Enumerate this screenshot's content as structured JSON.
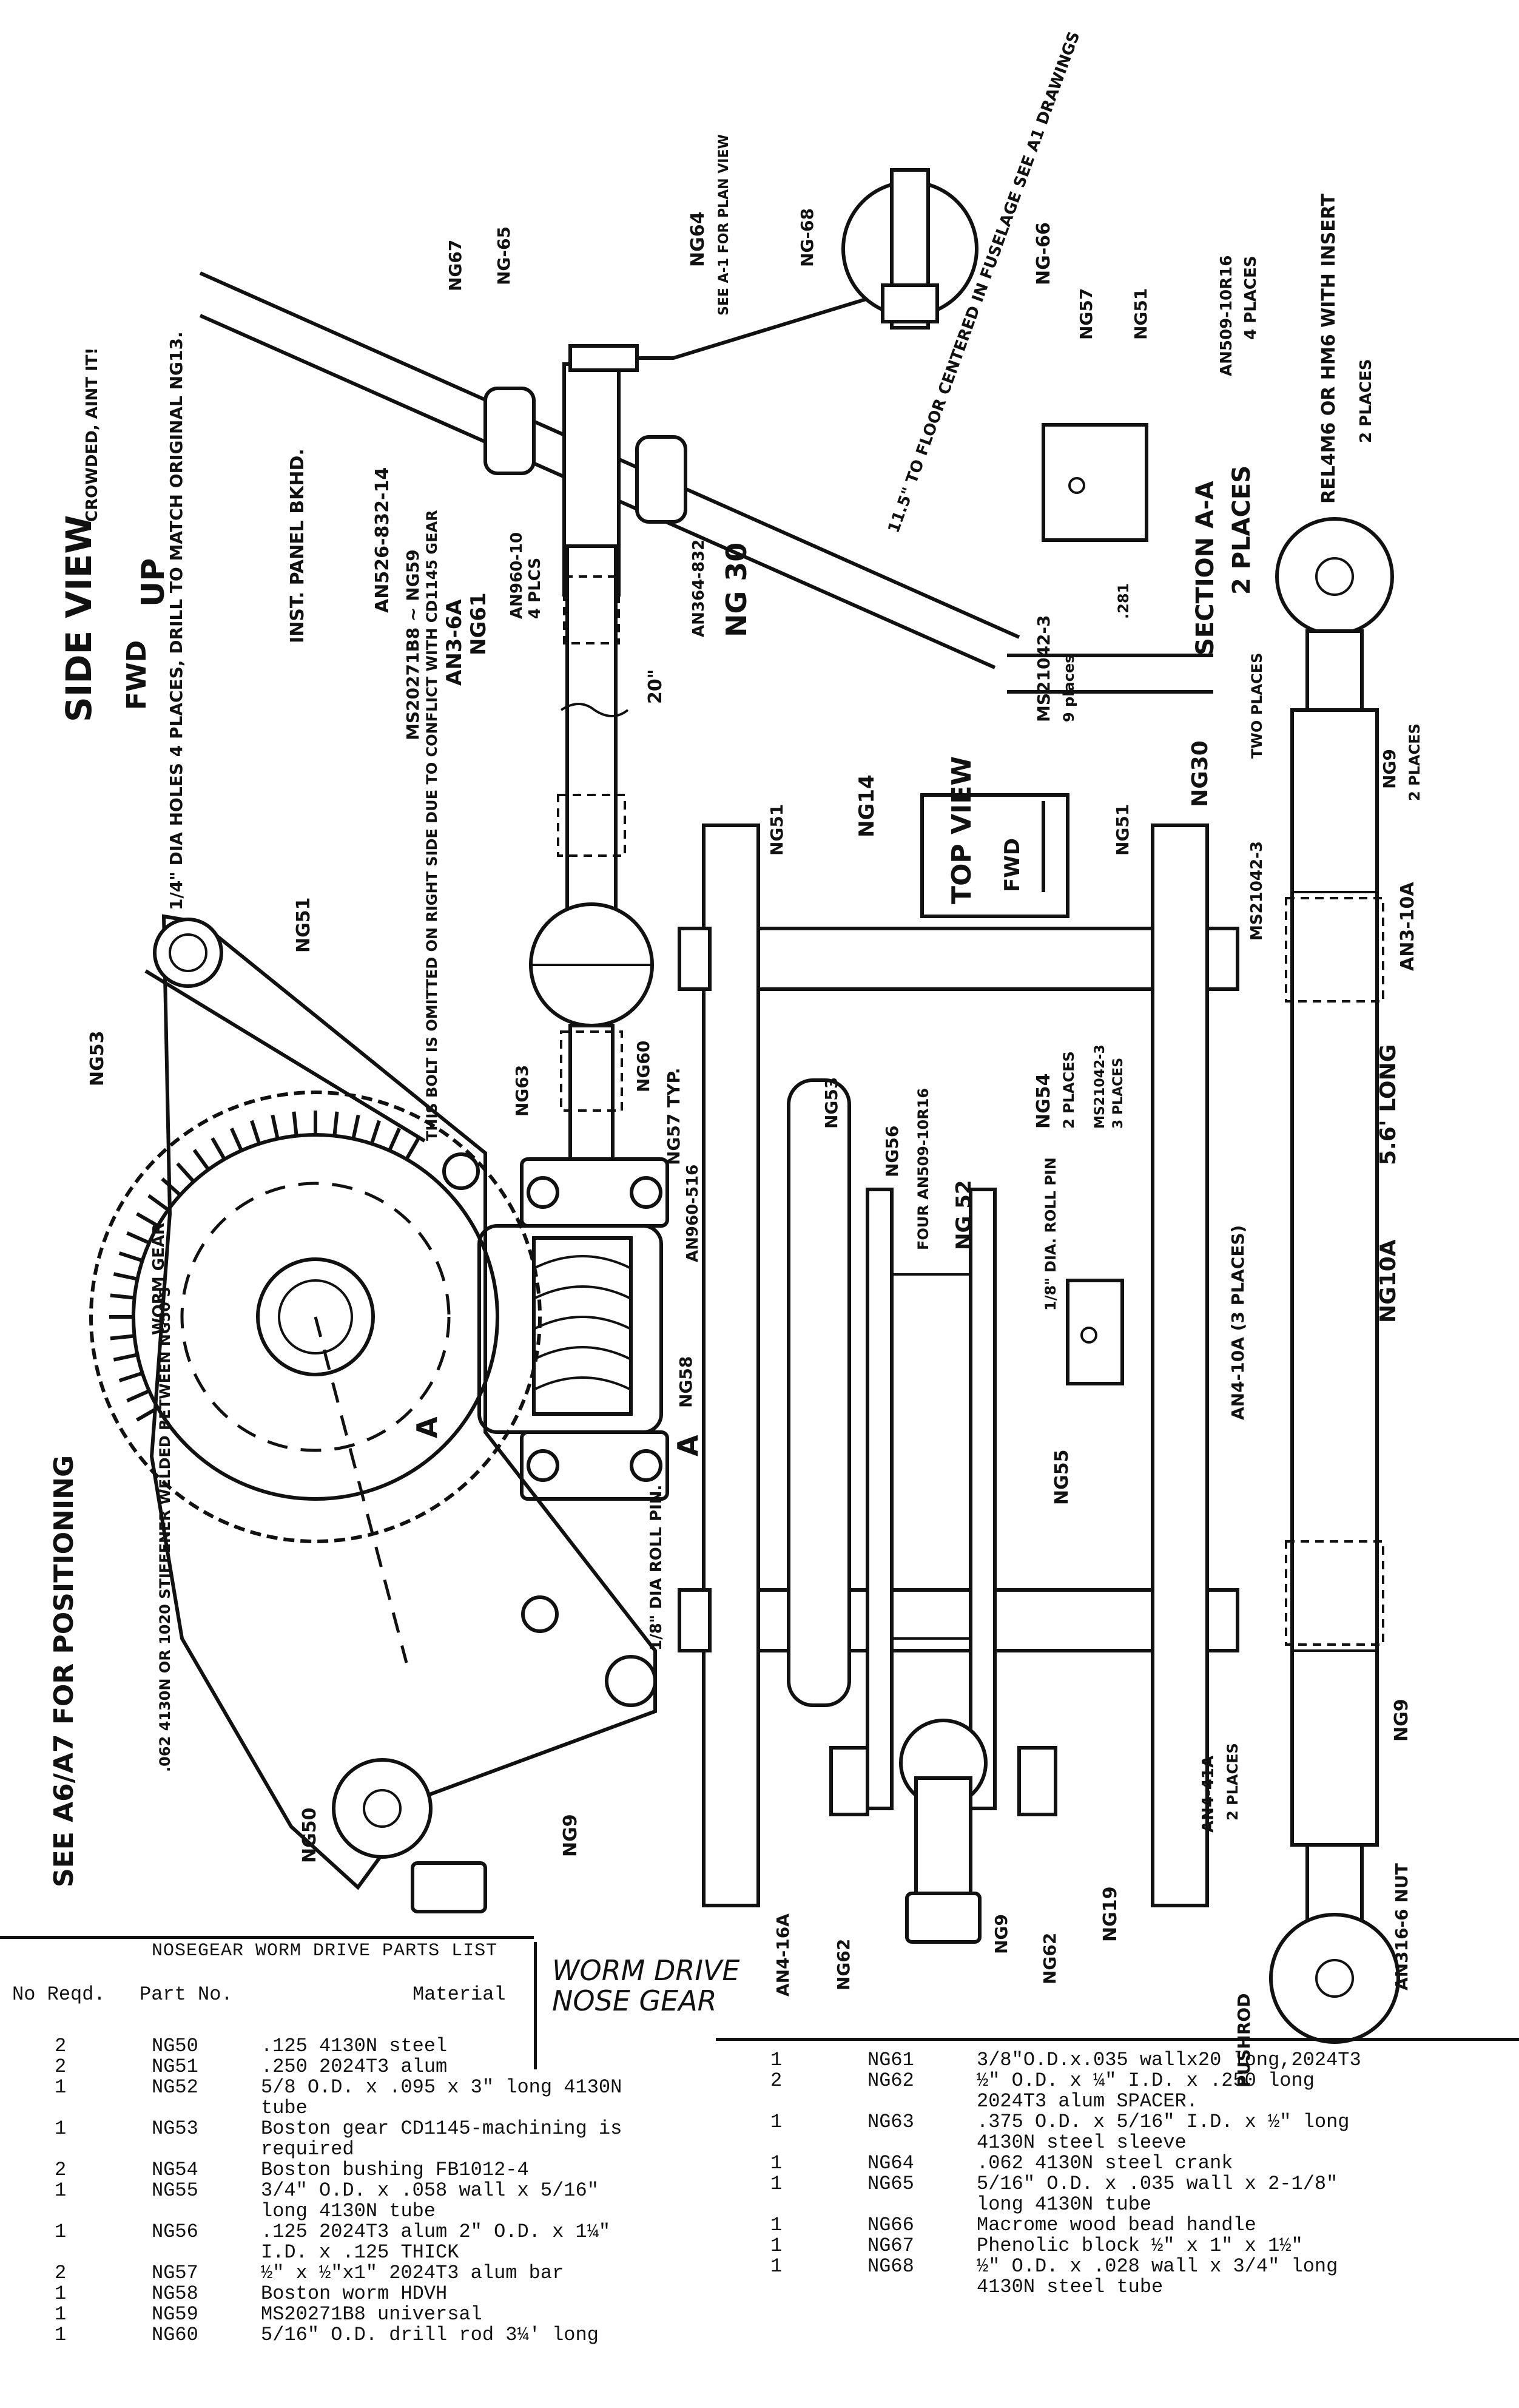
{
  "drawing": {
    "labels": {
      "crowded": "CROWDED, AINT IT!",
      "side_view": "SIDE VIEW",
      "up": "UP",
      "fwd": "FWD",
      "holes_note": "1/4\" DIA HOLES 4 PLACES, DRILL TO MATCH ORIGINAL NG13.",
      "inst_panel": "INST. PANEL BKHD.",
      "an526": "AN526-832-14",
      "ms20271": "MS20271B8 ~ NG59",
      "an3_6a": "AN3-6A",
      "ng61": "NG61",
      "an960": "AN960-10",
      "an960_note": "4 PLCS",
      "dim_20": "20\"",
      "an364": "AN364-832",
      "ng30_top": "NG 30",
      "ng67": "NG67",
      "ng65": "NG-65",
      "ng64": "NG64",
      "ng64_note": "SEE A-1 FOR PLAN VIEW",
      "ng68": "NG-68",
      "ng66": "NG-66",
      "floor_note": "11.5\" TO FLOOR CENTERED IN FUSELAGE SEE A1 DRAWINGS",
      "ng57": "NG57",
      "ng51_sec": "NG51",
      "an509": "AN509-10R16",
      "an509_note": "4 PLACES",
      "ms21042_sec": "MS21042-3",
      "ms21042_sec_note": "9 places",
      "dim_281": ".281",
      "section_aa": "SECTION A-A",
      "section_note": "2 PLACES",
      "rel4m6": "REL4M6 OR HM6 WITH INSERT",
      "rel4m6_note": "2 PLACES",
      "ng51_left": "NG51",
      "ng53": "NG53",
      "bolt_note": "THIS BOLT IS OMITTED ON RIGHT SIDE DUE TO CONFLICT WITH CD1145 GEAR",
      "ng63": "NG63",
      "ng60": "NG60",
      "ng57_typ": "NG57 TYP.",
      "an960_516": "AN960-516",
      "worm_gear": "WORM GEAR",
      "ng58": "NG58",
      "sec_a": "A",
      "roll_pin_left": "1/8\" DIA ROLL PIN.",
      "material_note": ".062 4130N OR 1020 STIFFENER WELDED BETWEEN NG50'S",
      "see_a6": "SEE A6/A7 FOR POSITIONING",
      "ng50": "NG50",
      "ng9_left": "NG9",
      "ng14": "NG14",
      "ng51_t1": "NG51",
      "ng51_t2": "NG51",
      "ng30_right": "NG30",
      "top_view": "TOP VIEW",
      "top_fwd": "FWD",
      "ng53_top": "NG53",
      "ng56": "NG56",
      "four_an509": "FOUR AN509-10R16",
      "ng52": "NG 52",
      "ng54": "NG54",
      "ng54_note": "2 PLACES",
      "ms21042_mid": "MS21042-3",
      "ms21042_mid_note": "3 PLACES",
      "roll_pin_top": "1/8\" DIA. ROLL PIN",
      "ng55": "NG55",
      "an4_10a": "AN4-10A (3 PLACES)",
      "an4_41a": "AN4-41A",
      "an4_41a_note": "2 PLACES",
      "an4_16a": "AN4-16A",
      "ng62a": "NG62",
      "ng9_bottom": "NG9",
      "ng62b": "NG62",
      "ng19": "NG19",
      "ms21042_right": "MS21042-3",
      "ms21042_right_note": "TWO PLACES",
      "an3_10a": "AN3-10A",
      "ng9_r1": "NG9",
      "ng9_r1_note": "2 PLACES",
      "ng10a": "NG10A",
      "dim_56": "5.6' LONG",
      "ng9_r2": "NG9",
      "an316": "AN316-6 NUT",
      "pushrod": "PUSHROD"
    }
  },
  "parts_list": {
    "title": "NOSEGEAR WORM DRIVE PARTS LIST",
    "headers": {
      "qty": "No Reqd.",
      "part": "Part No.",
      "material": "Material"
    },
    "worm_drive_label_1": "WORM DRIVE",
    "worm_drive_label_2": "NOSE GEAR",
    "left": [
      {
        "qty": "2",
        "part": "NG50",
        "material": ".125 4130N steel"
      },
      {
        "qty": "2",
        "part": "NG51",
        "material": ".250 2024T3 alum"
      },
      {
        "qty": "1",
        "part": "NG52",
        "material": "5/8 O.D. x .095 x 3\" long 4130N tube"
      },
      {
        "qty": "1",
        "part": "NG53",
        "material": "Boston gear CD1145-machining is required"
      },
      {
        "qty": "2",
        "part": "NG54",
        "material": "Boston bushing FB1012-4"
      },
      {
        "qty": "1",
        "part": "NG55",
        "material": "3/4\" O.D. x .058 wall x 5/16\" long 4130N tube"
      },
      {
        "qty": "1",
        "part": "NG56",
        "material": ".125 2024T3 alum 2\" O.D. x 1¼\" I.D. x .125 THICK"
      },
      {
        "qty": "2",
        "part": "NG57",
        "material": "½\" x ½\"x1\" 2024T3 alum bar"
      },
      {
        "qty": "1",
        "part": "NG58",
        "material": "Boston worm HDVH"
      },
      {
        "qty": "1",
        "part": "NG59",
        "material": "MS20271B8 universal"
      },
      {
        "qty": "1",
        "part": "NG60",
        "material": "5/16\" O.D. drill rod 3¼' long"
      }
    ],
    "right": [
      {
        "qty": "1",
        "part": "NG61",
        "material": "3/8\"O.D.x.035 wallx20 long,2024T3"
      },
      {
        "qty": "2",
        "part": "NG62",
        "material": "½\" O.D. x ¼\" I.D. x .250 long 2024T3 alum SPACER."
      },
      {
        "qty": "1",
        "part": "NG63",
        "material": ".375 O.D. x 5/16\" I.D. x ½\" long 4130N steel sleeve"
      },
      {
        "qty": "1",
        "part": "NG64",
        "material": ".062 4130N steel crank"
      },
      {
        "qty": "1",
        "part": "NG65",
        "material": "5/16\" O.D. x .035 wall x 2-1/8\" long 4130N tube"
      },
      {
        "qty": "1",
        "part": "NG66",
        "material": "Macrome wood bead handle"
      },
      {
        "qty": "1",
        "part": "NG67",
        "material": "Phenolic block ½\" x 1\" x 1½\""
      },
      {
        "qty": "1",
        "part": "NG68",
        "material": "½\" O.D. x .028 wall x 3/4\" long 4130N steel tube"
      }
    ]
  }
}
